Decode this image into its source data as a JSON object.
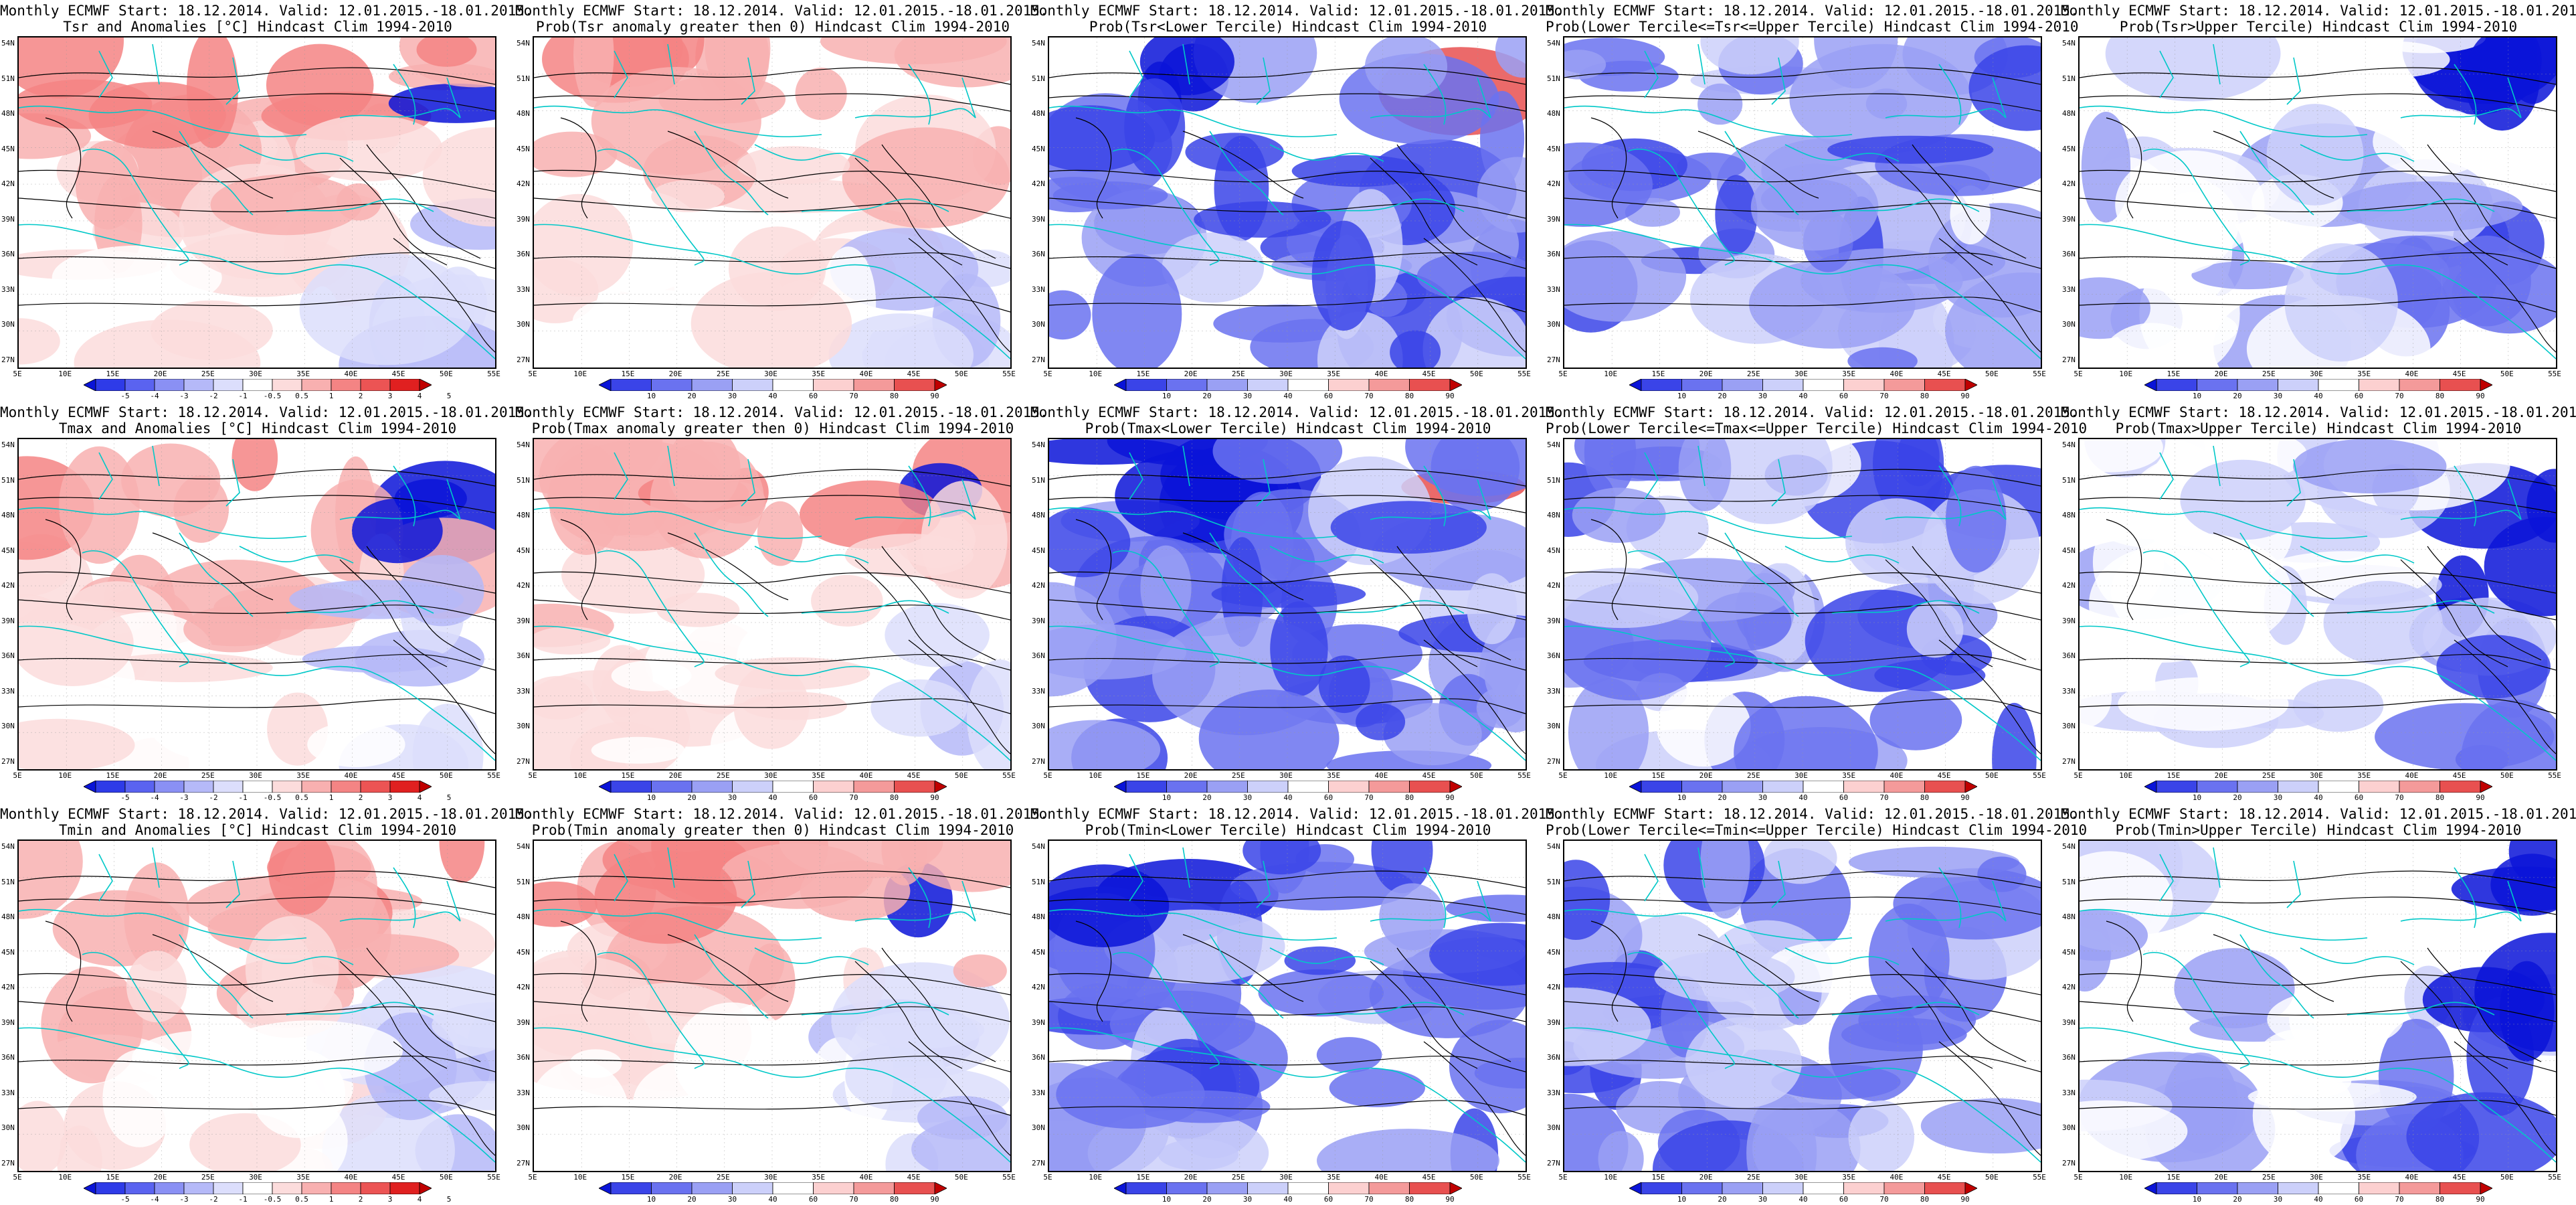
{
  "title_line1": "Monthly ECMWF Start: 18.12.2014. Valid: 12.01.2015.-18.01.2015.",
  "x_ticks": [
    "5E",
    "10E",
    "15E",
    "20E",
    "25E",
    "30E",
    "35E",
    "40E",
    "45E",
    "50E",
    "55E"
  ],
  "y_ticks": [
    "54N",
    "51N",
    "48N",
    "45N",
    "42N",
    "39N",
    "36N",
    "33N",
    "30N",
    "27N"
  ],
  "anomaly_scale": {
    "labels": [
      "-5",
      "-4",
      "-3",
      "-2",
      "-1",
      "-0.5",
      "0.5",
      "1",
      "2",
      "3",
      "4",
      "5"
    ],
    "colors": [
      "#0a14d8",
      "#2e3be8",
      "#5a63f0",
      "#8a90f4",
      "#b5b9f8",
      "#dcdefc",
      "#ffffff",
      "#fcdcdc",
      "#f8b0b0",
      "#f48484",
      "#ec5454",
      "#e02020",
      "#c00000"
    ]
  },
  "prob_scale": {
    "labels": [
      "10",
      "20",
      "30",
      "40",
      "60",
      "70",
      "80",
      "90"
    ],
    "colors": [
      "#0a14d8",
      "#3a44e8",
      "#6a72f0",
      "#9aa0f4",
      "#ccd0fa",
      "#ffffff",
      "#fcd0d0",
      "#f49a9a",
      "#e85050",
      "#c00000"
    ]
  },
  "contour_color": "#000000",
  "coast_color": "#00c8c8",
  "rows": [
    {
      "variable": "Tsr",
      "panels": [
        {
          "title2": "Tsr and Anomalies [°C] Hindcast Clim 1994-2010",
          "type": "anomaly",
          "pattern": "warm"
        },
        {
          "title2": "Prob(Tsr anomaly greater then 0) Hindcast Clim 1994-2010",
          "type": "prob",
          "pattern": "warm"
        },
        {
          "title2": "Prob(Tsr<Lower Tercile) Hindcast Clim 1994-2010",
          "type": "prob",
          "pattern": "blue-strong"
        },
        {
          "title2": "Prob(Lower Tercile<=Tsr<=Upper Tercile) Hindcast Clim 1994-2010",
          "type": "prob",
          "pattern": "blue-mid"
        },
        {
          "title2": "Prob(Tsr>Upper Tercile) Hindcast Clim 1994-2010",
          "type": "prob",
          "pattern": "blue-light"
        }
      ]
    },
    {
      "variable": "Tmax",
      "panels": [
        {
          "title2": "Tmax and Anomalies [°C] Hindcast Clim 1994-2010",
          "type": "anomaly",
          "pattern": "warm"
        },
        {
          "title2": "Prob(Tmax anomaly greater then 0) Hindcast Clim 1994-2010",
          "type": "prob",
          "pattern": "warm"
        },
        {
          "title2": "Prob(Tmax<Lower Tercile) Hindcast Clim 1994-2010",
          "type": "prob",
          "pattern": "blue-strong"
        },
        {
          "title2": "Prob(Lower Tercile<=Tmax<=Upper Tercile) Hindcast Clim 1994-2010",
          "type": "prob",
          "pattern": "blue-mid"
        },
        {
          "title2": "Prob(Tmax>Upper Tercile) Hindcast Clim 1994-2010",
          "type": "prob",
          "pattern": "blue-light"
        }
      ]
    },
    {
      "variable": "Tmin",
      "panels": [
        {
          "title2": "Tmin and Anomalies [°C] Hindcast Clim 1994-2010",
          "type": "anomaly",
          "pattern": "warm"
        },
        {
          "title2": "Prob(Tmin anomaly greater then 0) Hindcast Clim 1994-2010",
          "type": "prob",
          "pattern": "warm"
        },
        {
          "title2": "Prob(Tmin<Lower Tercile) Hindcast Clim 1994-2010",
          "type": "prob",
          "pattern": "blue-strong"
        },
        {
          "title2": "Prob(Lower Tercile<=Tmin<=Upper Tercile) Hindcast Clim 1994-2010",
          "type": "prob",
          "pattern": "blue-mid"
        },
        {
          "title2": "Prob(Tmin>Upper Tercile) Hindcast Clim 1994-2010",
          "type": "prob",
          "pattern": "blue-light"
        }
      ]
    }
  ]
}
